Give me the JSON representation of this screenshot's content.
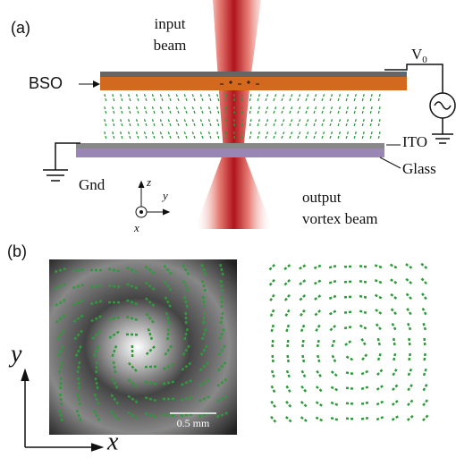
{
  "panel_a": {
    "label": "(a)",
    "input_beam": [
      "input",
      "beam"
    ],
    "bso": "BSO",
    "voltage": {
      "symbol": "V",
      "subscript": "0"
    },
    "ito": "ITO",
    "glass": "Glass",
    "gnd": "Gnd",
    "axes": {
      "z": "z",
      "y": "y",
      "x": "x"
    },
    "output_beam": [
      "output",
      "vortex beam"
    ]
  },
  "panel_b": {
    "label": "(b)",
    "axis_y": "y",
    "axis_x": "x",
    "scale_bar": "0.5 mm"
  }
}
